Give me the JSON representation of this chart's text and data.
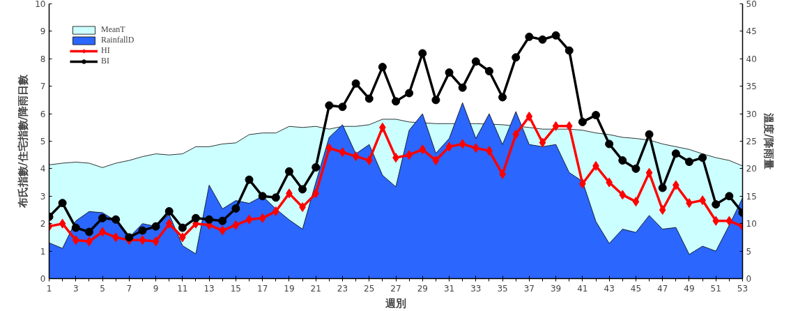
{
  "chart_data": {
    "type": "line",
    "xlabel": "週別",
    "ylabel": "布氏指數/住宅指數/降雨日數",
    "y2label": "溫度/降雨量",
    "x": [
      1,
      2,
      3,
      4,
      5,
      6,
      7,
      8,
      9,
      10,
      11,
      12,
      13,
      14,
      15,
      16,
      17,
      18,
      19,
      20,
      21,
      22,
      23,
      24,
      25,
      26,
      27,
      28,
      29,
      30,
      31,
      32,
      33,
      34,
      35,
      36,
      37,
      38,
      39,
      40,
      41,
      42,
      43,
      44,
      45,
      46,
      47,
      48,
      49,
      50,
      51,
      52,
      53
    ],
    "xlim": [
      1,
      53
    ],
    "xticks": [
      1,
      3,
      5,
      7,
      9,
      11,
      13,
      15,
      17,
      19,
      21,
      23,
      25,
      27,
      29,
      31,
      33,
      35,
      37,
      39,
      41,
      43,
      45,
      47,
      49,
      51,
      53
    ],
    "ylim": [
      0,
      10
    ],
    "yticks": [
      0,
      1,
      2,
      3,
      4,
      5,
      6,
      7,
      8,
      9,
      10
    ],
    "y2lim": [
      0,
      50
    ],
    "y2ticks": [
      0,
      5,
      10,
      15,
      20,
      25,
      30,
      35,
      40,
      45,
      50
    ],
    "grid": false,
    "legend": "top left",
    "series": [
      {
        "name": "MeanT",
        "type": "area",
        "axis": "y2",
        "color": "#ccffff",
        "values": [
          20.7,
          21,
          21.2,
          21,
          20.2,
          21,
          21.5,
          22.2,
          22.7,
          22.5,
          22.7,
          24,
          24,
          24.5,
          24.7,
          26.2,
          26.5,
          26.5,
          27.7,
          27.5,
          27.7,
          27.2,
          27.7,
          27.7,
          28,
          29,
          29,
          28.5,
          null,
          28.2,
          28.2,
          null,
          28.2,
          null,
          28,
          null,
          27.5,
          27.2,
          27.2,
          27.2,
          27,
          26.5,
          26.2,
          25.7,
          25.5,
          25.2,
          24.5,
          24,
          23.5,
          22.7,
          22,
          21.5,
          20.5
        ]
      },
      {
        "name": "RainfallD",
        "type": "area",
        "axis": "y2",
        "color": "#2b66ff",
        "values": [
          6.5,
          5.5,
          10.5,
          12.2,
          12,
          10.5,
          7.5,
          10,
          9.5,
          11.7,
          6,
          4.5,
          17,
          12.7,
          14.2,
          13.7,
          15,
          12.7,
          10.7,
          9,
          17.5,
          25.7,
          28,
          22.7,
          24.4,
          18.8,
          16.7,
          27,
          30,
          22.8,
          25.5,
          32,
          25.5,
          30,
          24.4,
          30.4,
          24.4,
          24,
          24.4,
          19.3,
          17.7,
          10.4,
          6.4,
          9,
          8.4,
          11.5,
          9,
          9.3,
          4.4,
          5.9,
          5,
          9.7,
          14.7
        ]
      },
      {
        "name": "HI",
        "marker": "diamond",
        "color": "#ff0000",
        "values": [
          1.9,
          2.0,
          1.4,
          1.35,
          1.7,
          1.5,
          1.4,
          1.4,
          1.35,
          2.0,
          1.5,
          2.0,
          1.95,
          1.75,
          1.95,
          2.15,
          2.2,
          2.45,
          3.1,
          2.6,
          3.1,
          4.75,
          4.6,
          4.45,
          4.3,
          5.5,
          4.4,
          4.5,
          4.7,
          4.3,
          4.8,
          4.9,
          4.75,
          4.65,
          3.8,
          5.25,
          5.9,
          4.95,
          5.55,
          5.55,
          3.45,
          4.1,
          3.5,
          3.05,
          2.8,
          3.85,
          2.5,
          3.4,
          2.75,
          2.85,
          2.1,
          2.1,
          1.9
        ]
      },
      {
        "name": "BI",
        "marker": "circle",
        "color": "#000000",
        "values": [
          2.25,
          2.75,
          1.85,
          1.7,
          2.2,
          2.15,
          1.5,
          1.75,
          1.9,
          2.45,
          1.85,
          2.2,
          2.15,
          2.1,
          2.55,
          3.6,
          3.0,
          2.95,
          3.9,
          3.25,
          4.05,
          6.3,
          6.25,
          7.1,
          6.55,
          7.7,
          6.45,
          6.75,
          8.2,
          6.5,
          7.5,
          6.95,
          7.9,
          7.55,
          6.6,
          8.05,
          8.8,
          8.7,
          8.85,
          8.3,
          5.7,
          5.95,
          4.9,
          4.3,
          4.0,
          5.25,
          3.3,
          4.55,
          4.25,
          4.4,
          2.7,
          3.0,
          2.4
        ]
      }
    ]
  }
}
